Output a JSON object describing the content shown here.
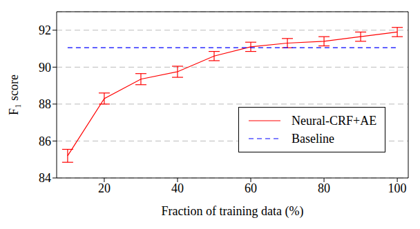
{
  "chart_data": {
    "type": "line",
    "x_label": "Fraction of training data (%)",
    "y_label": "F₁ score",
    "x": [
      10,
      20,
      30,
      40,
      50,
      60,
      70,
      80,
      90,
      100
    ],
    "series": [
      {
        "name": "Neural-CRF+AE",
        "color": "#ff0000",
        "line_style": "solid",
        "values": [
          85.2,
          88.3,
          89.35,
          89.75,
          90.6,
          91.1,
          91.3,
          91.4,
          91.65,
          91.9
        ],
        "errors": [
          0.35,
          0.3,
          0.3,
          0.3,
          0.25,
          0.25,
          0.25,
          0.25,
          0.25,
          0.25
        ]
      },
      {
        "name": "Baseline",
        "color": "#0000ff",
        "line_style": "dashed",
        "values": [
          91.05,
          91.05,
          91.05,
          91.05,
          91.05,
          91.05,
          91.05,
          91.05,
          91.05,
          91.05
        ]
      }
    ],
    "xlim": [
      7,
      103
    ],
    "xticks": [
      20,
      40,
      60,
      80,
      100
    ],
    "ylim": [
      84,
      93
    ],
    "yticks": [
      84,
      86,
      88,
      90,
      92
    ],
    "grid": true,
    "legend": "lower right"
  }
}
